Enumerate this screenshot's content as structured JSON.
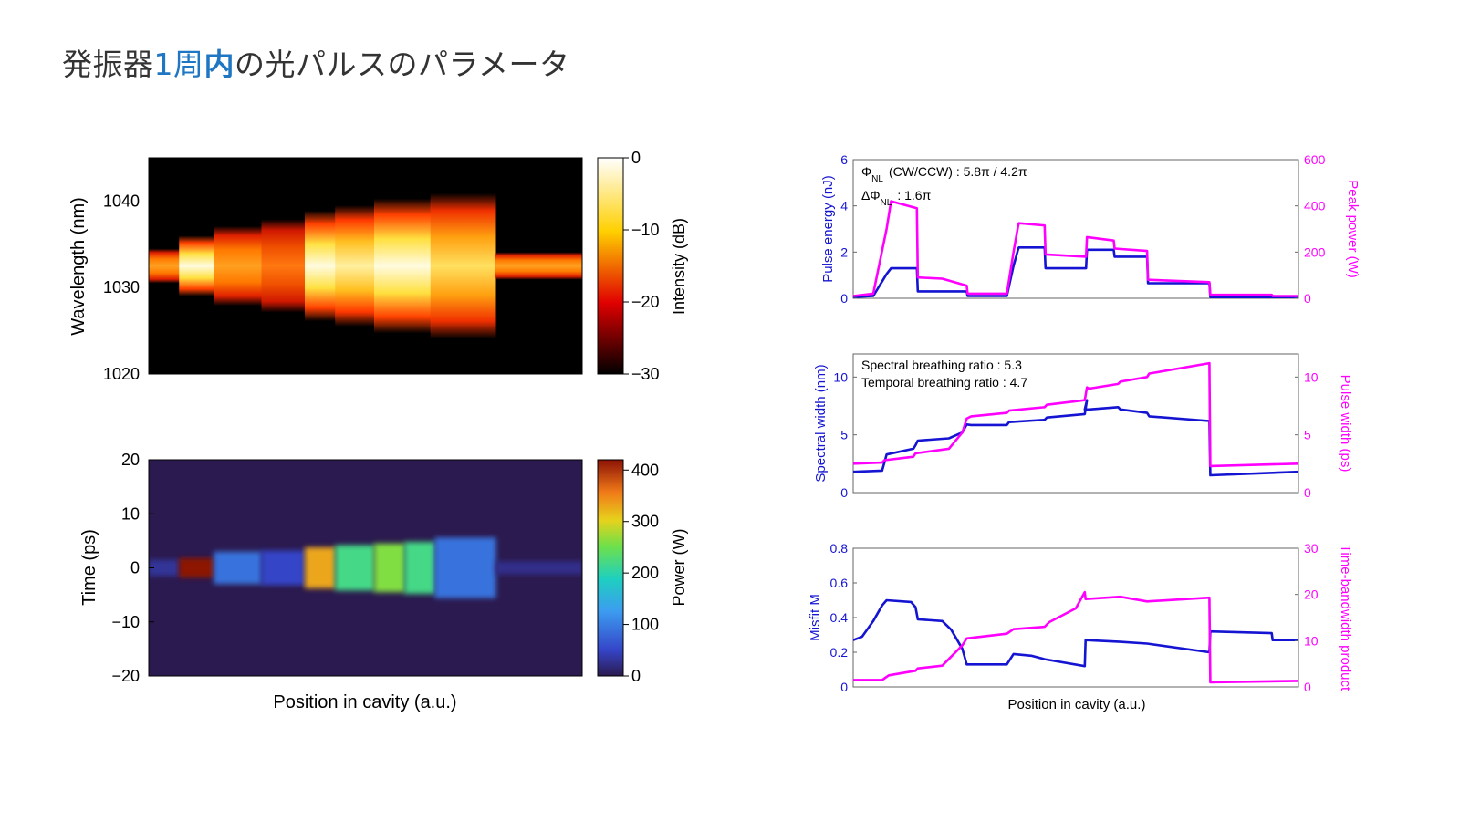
{
  "slide": {
    "title_prefix": "発振器",
    "title_number": "1",
    "title_mid": "周",
    "title_strong": "内",
    "title_suffix": "の光パルスのパラメータ"
  },
  "chart_data": [
    {
      "type": "heatmap",
      "ylabel": "Wavelength (nm)",
      "xlabel": "",
      "ylim": [
        1020,
        1045
      ],
      "yticks": [
        1020,
        1030,
        1040
      ],
      "colormap": "hot",
      "colorbar": {
        "label": "Intensity (dB)",
        "ticks": [
          0,
          -10,
          -20,
          -30
        ],
        "range": [
          -30,
          0
        ]
      },
      "segments": [
        {
          "x": [
            0.0,
            0.07
          ],
          "center": 1032.5,
          "halfwidth": 2.0,
          "level": "orange"
        },
        {
          "x": [
            0.07,
            0.15
          ],
          "center": 1032.5,
          "halfwidth": 3.5,
          "level": "yellow-white"
        },
        {
          "x": [
            0.15,
            0.26
          ],
          "center": 1032.5,
          "halfwidth": 4.6,
          "level": "orange"
        },
        {
          "x": [
            0.26,
            0.36
          ],
          "center": 1032.5,
          "halfwidth": 5.4,
          "level": "red-orange"
        },
        {
          "x": [
            0.36,
            0.43
          ],
          "center": 1032.5,
          "halfwidth": 6.4,
          "level": "yellow-white"
        },
        {
          "x": [
            0.43,
            0.52
          ],
          "center": 1032.5,
          "halfwidth": 7.0,
          "level": "yellow"
        },
        {
          "x": [
            0.52,
            0.65
          ],
          "center": 1032.5,
          "halfwidth": 7.8,
          "level": "yellow-white"
        },
        {
          "x": [
            0.65,
            0.8
          ],
          "center": 1032.5,
          "halfwidth": 8.4,
          "level": "yellow-orange"
        },
        {
          "x": [
            0.8,
            1.0
          ],
          "center": 1032.5,
          "halfwidth": 1.6,
          "level": "orange"
        }
      ]
    },
    {
      "type": "heatmap",
      "ylabel": "Time (ps)",
      "xlabel": "Position in cavity (a.u.)",
      "ylim": [
        -20,
        20
      ],
      "yticks": [
        -20,
        -10,
        0,
        10,
        20
      ],
      "colormap": "jet",
      "colorbar": {
        "label": "Power (W)",
        "ticks": [
          0,
          100,
          200,
          300,
          400
        ],
        "range": [
          0,
          420
        ]
      },
      "segments": [
        {
          "x": [
            0.0,
            0.07
          ],
          "halfwidth": 1.5,
          "power": 30
        },
        {
          "x": [
            0.07,
            0.15
          ],
          "halfwidth": 1.8,
          "power": 420
        },
        {
          "x": [
            0.15,
            0.26
          ],
          "halfwidth": 3.0,
          "power": 90
        },
        {
          "x": [
            0.26,
            0.36
          ],
          "halfwidth": 3.2,
          "power": 50
        },
        {
          "x": [
            0.36,
            0.43
          ],
          "halfwidth": 3.8,
          "power": 330
        },
        {
          "x": [
            0.43,
            0.52
          ],
          "halfwidth": 4.2,
          "power": 220
        },
        {
          "x": [
            0.52,
            0.59
          ],
          "halfwidth": 4.5,
          "power": 260
        },
        {
          "x": [
            0.59,
            0.66
          ],
          "halfwidth": 4.8,
          "power": 220
        },
        {
          "x": [
            0.66,
            0.8
          ],
          "halfwidth": 5.6,
          "power": 90
        },
        {
          "x": [
            0.8,
            1.0
          ],
          "halfwidth": 1.2,
          "power": 25
        }
      ]
    },
    {
      "type": "line",
      "xlabel": "",
      "ylabel": "Pulse energy (nJ)",
      "ylabel_right": "Peak power (W)",
      "ylim": [
        0,
        6
      ],
      "ylim_right": [
        0,
        600
      ],
      "yticks": [
        0,
        2,
        4,
        6
      ],
      "yticks_right": [
        0,
        200,
        400,
        600
      ],
      "annotations": [
        {
          "symbol": "Φ",
          "sub": "NL",
          "text": "(CW/CCW) : 5.8π / 4.2π"
        },
        {
          "symbol": "ΔΦ",
          "sub": "NL",
          "text": ": 1.6π"
        }
      ],
      "series": [
        {
          "name": "",
          "axis": "left",
          "color": "#1414d2",
          "x": [
            0,
            0.045,
            0.075,
            0.085,
            0.143,
            0.145,
            0.255,
            0.257,
            0.345,
            0.36,
            0.37,
            0.372,
            0.43,
            0.432,
            0.523,
            0.525,
            0.585,
            0.587,
            0.66,
            0.662,
            0.8,
            0.802,
            0.94,
            0.942,
            1.0
          ],
          "y": [
            0.05,
            0.1,
            1.05,
            1.3,
            1.3,
            0.3,
            0.3,
            0.1,
            0.1,
            1.4,
            2.1,
            2.2,
            2.2,
            1.3,
            1.3,
            2.1,
            2.1,
            1.8,
            1.8,
            0.65,
            0.65,
            0.05,
            0.05,
            0.05,
            0.05
          ]
        },
        {
          "name": "",
          "axis": "right",
          "color": "#ff00ff",
          "x": [
            0,
            0.045,
            0.075,
            0.085,
            0.143,
            0.145,
            0.2,
            0.255,
            0.257,
            0.345,
            0.36,
            0.37,
            0.372,
            0.43,
            0.432,
            0.523,
            0.525,
            0.585,
            0.587,
            0.66,
            0.662,
            0.8,
            0.802,
            0.94,
            0.942,
            1.0
          ],
          "y": [
            10,
            20,
            300,
            420,
            390,
            90,
            85,
            55,
            20,
            20,
            200,
            310,
            325,
            315,
            190,
            180,
            265,
            250,
            215,
            205,
            80,
            70,
            15,
            15,
            10,
            10
          ]
        }
      ]
    },
    {
      "type": "line",
      "xlabel": "",
      "ylabel": "Spectral width (nm)",
      "ylabel_right": "Pulse width (ps)",
      "ylim": [
        0,
        12
      ],
      "ylim_right": [
        0,
        12
      ],
      "yticks": [
        0,
        5,
        10
      ],
      "yticks_right": [
        0,
        5,
        10
      ],
      "annotations": [
        {
          "text": "Spectral breathing ratio : 5.3"
        },
        {
          "text": "Temporal breathing ratio : 4.7"
        }
      ],
      "series": [
        {
          "name": "",
          "axis": "left",
          "color": "#1414d2",
          "x": [
            0,
            0.065,
            0.07,
            0.075,
            0.135,
            0.14,
            0.145,
            0.215,
            0.245,
            0.255,
            0.265,
            0.345,
            0.35,
            0.43,
            0.435,
            0.52,
            0.525,
            0.52,
            0.53,
            0.595,
            0.6,
            0.66,
            0.665,
            0.8,
            0.802,
            1.0
          ],
          "y": [
            1.8,
            1.9,
            2.6,
            3.3,
            3.8,
            4.1,
            4.5,
            4.7,
            5.2,
            5.9,
            5.85,
            5.85,
            6.1,
            6.3,
            6.5,
            6.8,
            8.0,
            7.2,
            7.2,
            7.4,
            7.2,
            6.9,
            6.6,
            6.2,
            1.5,
            1.8
          ]
        },
        {
          "name": "",
          "axis": "right",
          "color": "#ff00ff",
          "x": [
            0,
            0.065,
            0.07,
            0.135,
            0.14,
            0.215,
            0.245,
            0.255,
            0.265,
            0.345,
            0.35,
            0.43,
            0.435,
            0.52,
            0.525,
            0.53,
            0.595,
            0.6,
            0.66,
            0.665,
            0.8,
            0.802,
            1.0
          ],
          "y": [
            2.5,
            2.6,
            2.8,
            3.1,
            3.4,
            3.8,
            5.2,
            6.4,
            6.6,
            6.9,
            7.1,
            7.4,
            7.6,
            8.0,
            9.1,
            9.0,
            9.4,
            9.6,
            10.0,
            10.3,
            11.2,
            2.3,
            2.5
          ]
        }
      ]
    },
    {
      "type": "line",
      "xlabel": "Position in cavity (a.u.)",
      "ylabel": "Misfit M",
      "ylabel_right": "Time-bandwidth product",
      "ylim": [
        0,
        0.8
      ],
      "ylim_right": [
        0,
        30
      ],
      "yticks": [
        0,
        0.2,
        0.4,
        0.6,
        0.8
      ],
      "yticks_right": [
        0,
        10,
        20,
        30
      ],
      "series": [
        {
          "name": "",
          "axis": "left",
          "color": "#1414d2",
          "x": [
            0,
            0.02,
            0.045,
            0.065,
            0.075,
            0.13,
            0.14,
            0.145,
            0.2,
            0.22,
            0.245,
            0.255,
            0.345,
            0.36,
            0.4,
            0.43,
            0.52,
            0.522,
            0.6,
            0.66,
            0.8,
            0.802,
            0.94,
            0.942,
            1.0
          ],
          "y": [
            0.27,
            0.29,
            0.38,
            0.47,
            0.5,
            0.49,
            0.46,
            0.39,
            0.38,
            0.33,
            0.22,
            0.13,
            0.13,
            0.19,
            0.18,
            0.16,
            0.12,
            0.27,
            0.26,
            0.25,
            0.2,
            0.32,
            0.31,
            0.27,
            0.27
          ]
        },
        {
          "name": "",
          "axis": "right",
          "color": "#ff00ff",
          "x": [
            0,
            0.065,
            0.08,
            0.14,
            0.145,
            0.2,
            0.245,
            0.255,
            0.345,
            0.36,
            0.43,
            0.44,
            0.5,
            0.52,
            0.522,
            0.6,
            0.66,
            0.8,
            0.802,
            1.0
          ],
          "y": [
            1.5,
            1.5,
            2.5,
            3.5,
            4.0,
            4.6,
            9.0,
            10.5,
            11.5,
            12.5,
            13.0,
            14.0,
            17.0,
            20.5,
            19.0,
            19.5,
            18.5,
            19.3,
            1.0,
            1.3
          ]
        }
      ]
    }
  ]
}
